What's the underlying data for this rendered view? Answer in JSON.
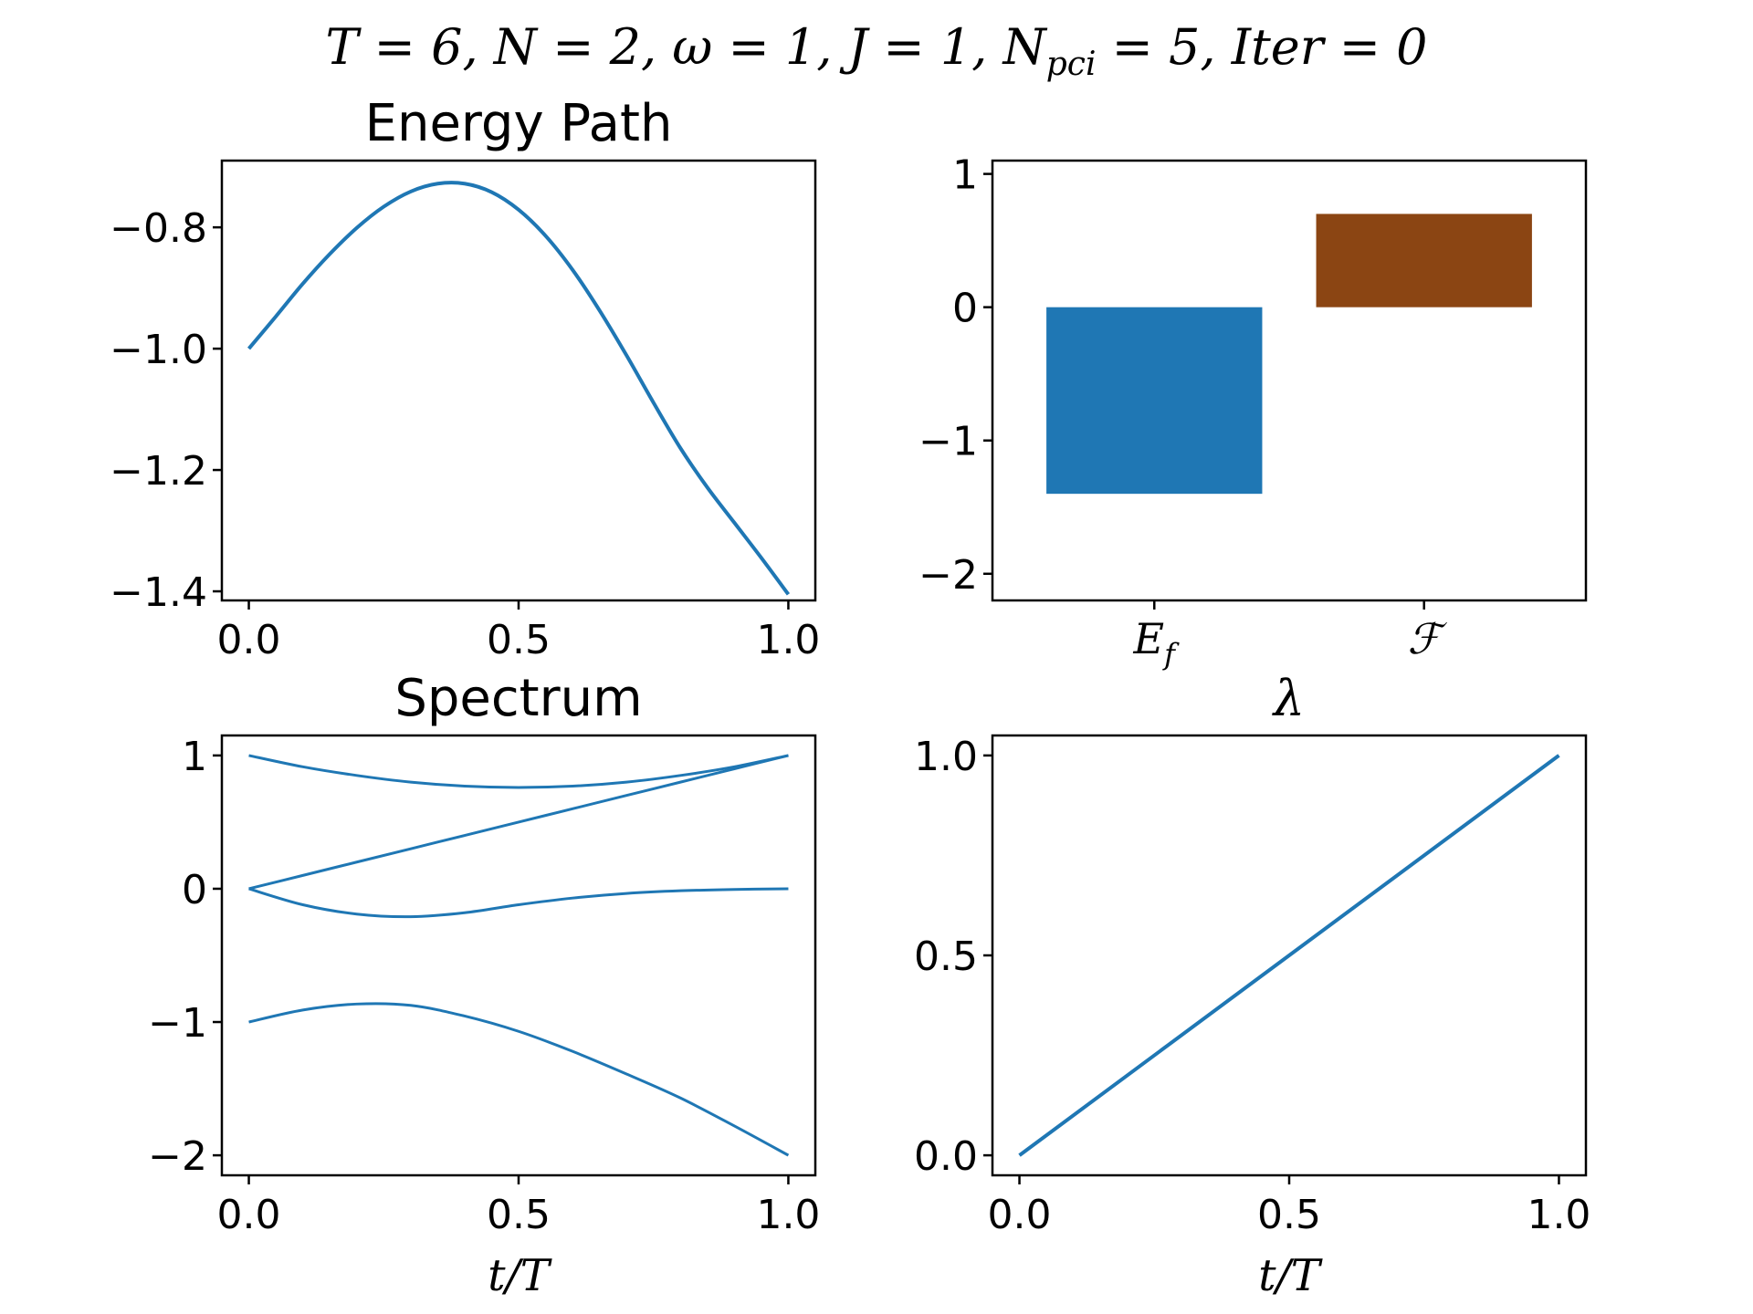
{
  "figure": {
    "suptitle": "T = 6, N = 2, ω = 1, J = 1, N",
    "suptitle_sub": "pci",
    "suptitle_tail": " = 5, Iter = 0"
  },
  "chart_data": [
    {
      "id": "energy",
      "type": "line",
      "title": "Energy Path",
      "xlabel": "",
      "xlim": [
        -0.05,
        1.05
      ],
      "ylim": [
        -1.415,
        -0.69
      ],
      "xticks": [
        0.0,
        0.5,
        1.0
      ],
      "xtick_labels": [
        "0.0",
        "0.5",
        "1.0"
      ],
      "yticks": [
        -0.8,
        -1.0,
        -1.2,
        -1.4
      ],
      "ytick_labels": [
        "−0.8",
        "−1.0",
        "−1.2",
        "−1.4"
      ],
      "color": "#1f77b4",
      "series": [
        {
          "x": [
            0.0,
            0.05,
            0.1,
            0.15,
            0.2,
            0.25,
            0.3,
            0.35,
            0.4,
            0.45,
            0.5,
            0.55,
            0.6,
            0.65,
            0.7,
            0.75,
            0.8,
            0.85,
            0.9,
            0.95,
            1.0
          ],
          "y": [
            -1.0,
            -0.947,
            -0.893,
            -0.844,
            -0.801,
            -0.766,
            -0.741,
            -0.728,
            -0.728,
            -0.742,
            -0.771,
            -0.814,
            -0.87,
            -0.937,
            -1.011,
            -1.089,
            -1.164,
            -1.229,
            -1.287,
            -1.345,
            -1.405
          ]
        }
      ]
    },
    {
      "id": "bars",
      "type": "bar",
      "title": "",
      "xlabel": "",
      "ylim": [
        -2.2,
        1.1
      ],
      "yticks": [
        1,
        0,
        -1,
        -2
      ],
      "ytick_labels": [
        "1",
        "0",
        "−1",
        "−2"
      ],
      "categories": [
        "E_f",
        "F"
      ],
      "category_labels": [
        {
          "main": "E",
          "sub": "f"
        },
        {
          "main": "ℱ",
          "sub": ""
        }
      ],
      "values": [
        -1.4,
        0.7
      ],
      "colors": [
        "#1f77b4",
        "#8b4513"
      ]
    },
    {
      "id": "spectrum",
      "type": "line",
      "title": "Spectrum",
      "xlabel": "t/T",
      "xlim": [
        -0.05,
        1.05
      ],
      "ylim": [
        -2.15,
        1.15
      ],
      "xticks": [
        0.0,
        0.5,
        1.0
      ],
      "xtick_labels": [
        "0.0",
        "0.5",
        "1.0"
      ],
      "yticks": [
        1,
        0,
        -1,
        -2
      ],
      "ytick_labels": [
        "1",
        "0",
        "−1",
        "−2"
      ],
      "color": "#1f77b4",
      "series": [
        {
          "x": [
            0.0,
            0.1,
            0.2,
            0.3,
            0.4,
            0.5,
            0.6,
            0.7,
            0.8,
            0.9,
            1.0
          ],
          "y": [
            1.0,
            0.915,
            0.85,
            0.8,
            0.77,
            0.76,
            0.77,
            0.8,
            0.85,
            0.915,
            1.0
          ]
        },
        {
          "x": [
            0.0,
            0.1,
            0.2,
            0.3,
            0.4,
            0.5,
            0.6,
            0.7,
            0.8,
            0.9,
            1.0
          ],
          "y": [
            0.0,
            0.1,
            0.2,
            0.3,
            0.4,
            0.5,
            0.6,
            0.7,
            0.8,
            0.9,
            1.0
          ]
        },
        {
          "x": [
            0.0,
            0.1,
            0.2,
            0.3,
            0.4,
            0.5,
            0.6,
            0.7,
            0.8,
            0.9,
            1.0
          ],
          "y": [
            0.0,
            -0.12,
            -0.19,
            -0.21,
            -0.18,
            -0.12,
            -0.07,
            -0.035,
            -0.015,
            -0.005,
            0.0
          ]
        },
        {
          "x": [
            0.0,
            0.1,
            0.2,
            0.3,
            0.4,
            0.5,
            0.6,
            0.7,
            0.8,
            0.9,
            1.0
          ],
          "y": [
            -1.0,
            -0.91,
            -0.865,
            -0.875,
            -0.955,
            -1.07,
            -1.22,
            -1.39,
            -1.57,
            -1.78,
            -2.0
          ]
        }
      ]
    },
    {
      "id": "lambda",
      "type": "line",
      "title": "λ",
      "xlabel": "t/T",
      "xlim": [
        -0.05,
        1.05
      ],
      "ylim": [
        -0.05,
        1.05
      ],
      "xticks": [
        0.0,
        0.5,
        1.0
      ],
      "xtick_labels": [
        "0.0",
        "0.5",
        "1.0"
      ],
      "yticks": [
        1.0,
        0.5,
        0.0
      ],
      "ytick_labels": [
        "1.0",
        "0.5",
        "0.0"
      ],
      "color": "#1f77b4",
      "series": [
        {
          "x": [
            0.0,
            1.0
          ],
          "y": [
            0.0,
            1.0
          ]
        }
      ]
    }
  ]
}
